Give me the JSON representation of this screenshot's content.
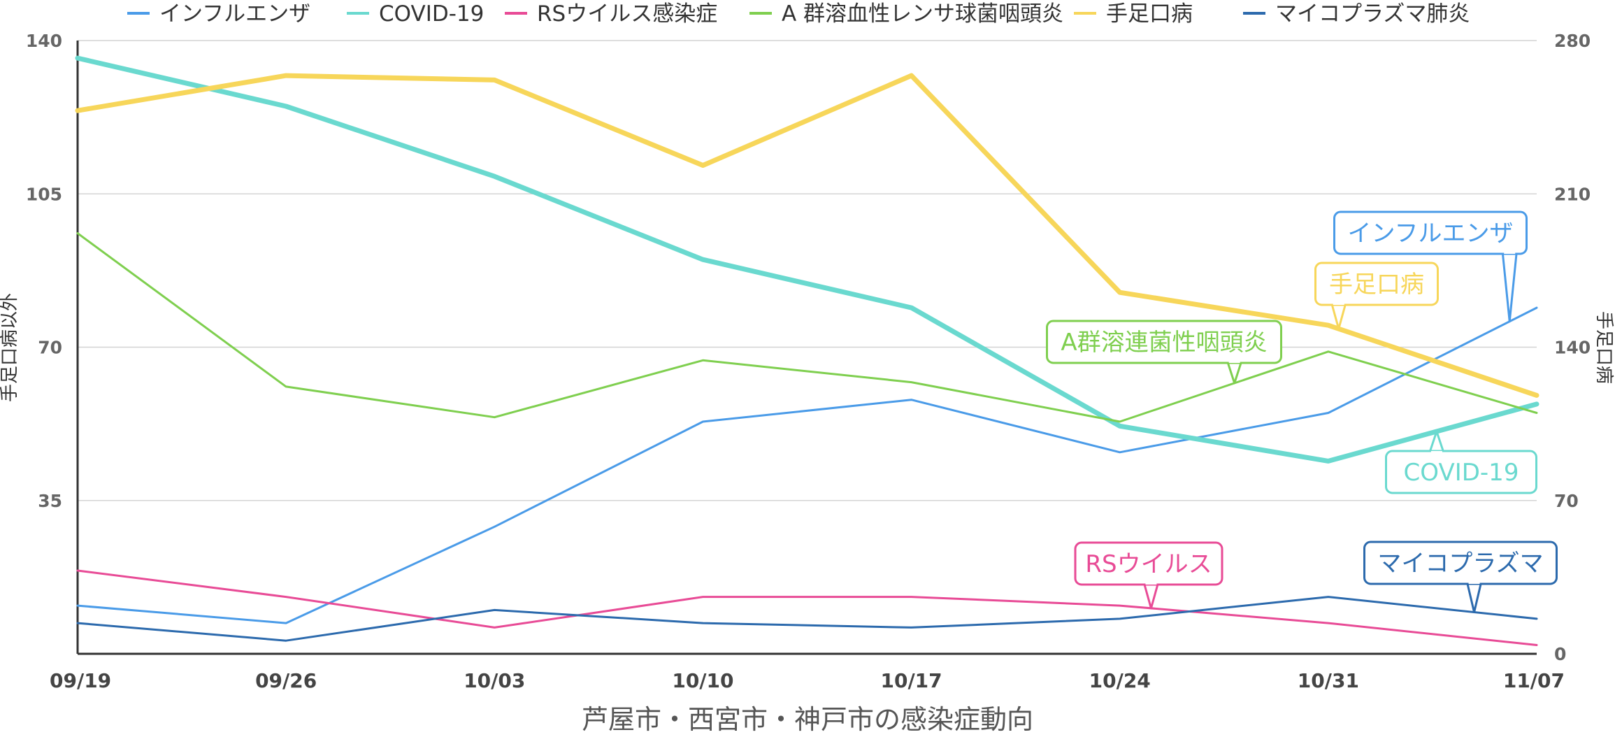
{
  "chart_data": {
    "type": "line",
    "xlabel": "芦屋市・西宮市・神戸市の感染症動向",
    "y_left_label": "手足口病以外",
    "y_right_label": "手足口病",
    "categories": [
      "09/19",
      "09/26",
      "10/03",
      "10/10",
      "10/17",
      "10/24",
      "10/31",
      "11/07"
    ],
    "y_left": {
      "min": 0,
      "max": 140,
      "ticks": [
        35,
        70,
        105,
        140
      ]
    },
    "y_right": {
      "min": 0,
      "max": 280,
      "ticks": [
        0,
        70,
        140,
        210,
        280
      ]
    },
    "grid": true,
    "legend_position": "top",
    "series": [
      {
        "name": "インフルエンザ",
        "axis": "left",
        "color": "#4a9be8",
        "width": 3,
        "values": [
          11,
          7,
          29,
          53,
          58,
          46,
          55,
          79
        ]
      },
      {
        "name": "COVID-19",
        "axis": "left",
        "color": "#6ad9cf",
        "width": 7,
        "values": [
          136,
          125,
          109,
          90,
          79,
          52,
          44,
          57
        ]
      },
      {
        "name": "RSウイルス感染症",
        "axis": "left",
        "color": "#e84b96",
        "width": 3,
        "values": [
          19,
          13,
          6,
          13,
          13,
          11,
          7,
          2
        ]
      },
      {
        "name": "A 群溶血性レンサ球菌咽頭炎",
        "axis": "left",
        "color": "#7fcf4f",
        "width": 3,
        "values": [
          96,
          61,
          54,
          67,
          62,
          53,
          69,
          55
        ]
      },
      {
        "name": "手足口病",
        "axis": "right",
        "color": "#f7d65a",
        "width": 7,
        "values": [
          248,
          264,
          262,
          223,
          264,
          165,
          150,
          118
        ]
      },
      {
        "name": "マイコプラズマ肺炎",
        "axis": "left",
        "color": "#2c6aad",
        "width": 3,
        "values": [
          7,
          3,
          10,
          7,
          6,
          8,
          13,
          8
        ]
      }
    ],
    "callouts": [
      {
        "label": "インフルエンザ",
        "series": 0,
        "color": "#4a9be8"
      },
      {
        "label": "手足口病",
        "series": 4,
        "color": "#f7d65a"
      },
      {
        "label": "A群溶連菌性咽頭炎",
        "series": 3,
        "color": "#7fcf4f"
      },
      {
        "label": "COVID-19",
        "series": 1,
        "color": "#6ad9cf"
      },
      {
        "label": "RSウイルス",
        "series": 2,
        "color": "#e84b96"
      },
      {
        "label": "マイコプラズマ",
        "series": 5,
        "color": "#2c6aad"
      }
    ]
  }
}
